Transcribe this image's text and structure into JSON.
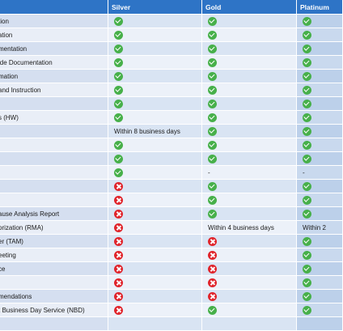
{
  "columns": [
    "",
    "Silver",
    "Gold",
    "Platinum"
  ],
  "rows": [
    {
      "feature": "tion",
      "cells": [
        "check",
        "check",
        "check"
      ]
    },
    {
      "feature": "ation",
      "cells": [
        "check",
        "check",
        "check"
      ]
    },
    {
      "feature": "mentation",
      "cells": [
        "check",
        "check",
        "check"
      ]
    },
    {
      "feature": "ide Documentation",
      "cells": [
        "check",
        "check",
        "check"
      ]
    },
    {
      "feature": "mation",
      "cells": [
        "check",
        "check",
        "check"
      ]
    },
    {
      "feature": "and Instruction",
      "cells": [
        "check",
        "check",
        "check"
      ]
    },
    {
      "feature": "",
      "cells": [
        "check",
        "check",
        "check"
      ]
    },
    {
      "feature": "s (HW)",
      "cells": [
        "check",
        "check",
        "check"
      ]
    },
    {
      "feature": "",
      "cells": [
        "Within 8 business days",
        "check",
        "check"
      ]
    },
    {
      "feature": "",
      "cells": [
        "check",
        "check",
        "check"
      ]
    },
    {
      "feature": "",
      "cells": [
        "check",
        "check",
        "check"
      ]
    },
    {
      "feature": "",
      "cells": [
        "check",
        "-",
        "-"
      ]
    },
    {
      "feature": "",
      "cells": [
        "cross",
        "check",
        "check"
      ]
    },
    {
      "feature": "",
      "cells": [
        "cross",
        "check",
        "check"
      ]
    },
    {
      "feature": "ause Analysis Report",
      "cells": [
        "cross",
        "check",
        "check"
      ]
    },
    {
      "feature": "orization (RMA)",
      "cells": [
        "cross",
        "Within 4 business days",
        "Within 2"
      ]
    },
    {
      "feature": "er (TAM)",
      "cells": [
        "cross",
        "cross",
        "check"
      ]
    },
    {
      "feature": "eeting",
      "cells": [
        "cross",
        "cross",
        "check"
      ]
    },
    {
      "feature": "ce",
      "cells": [
        "cross",
        "cross",
        "check"
      ]
    },
    {
      "feature": "",
      "cells": [
        "cross",
        "cross",
        "check"
      ]
    },
    {
      "feature": "mendations",
      "cells": [
        "cross",
        "cross",
        "check"
      ]
    },
    {
      "feature": "t Business Day Service (NBD)",
      "cells": [
        "cross",
        "check",
        "check"
      ]
    },
    {
      "feature": "",
      "cells": [
        "",
        "",
        ""
      ]
    }
  ],
  "icons": {
    "check": "check-circle-icon",
    "cross": "cross-circle-icon"
  },
  "colors": {
    "header": "#2e74c6",
    "check": "#47b04a",
    "cross": "#e0242b"
  }
}
